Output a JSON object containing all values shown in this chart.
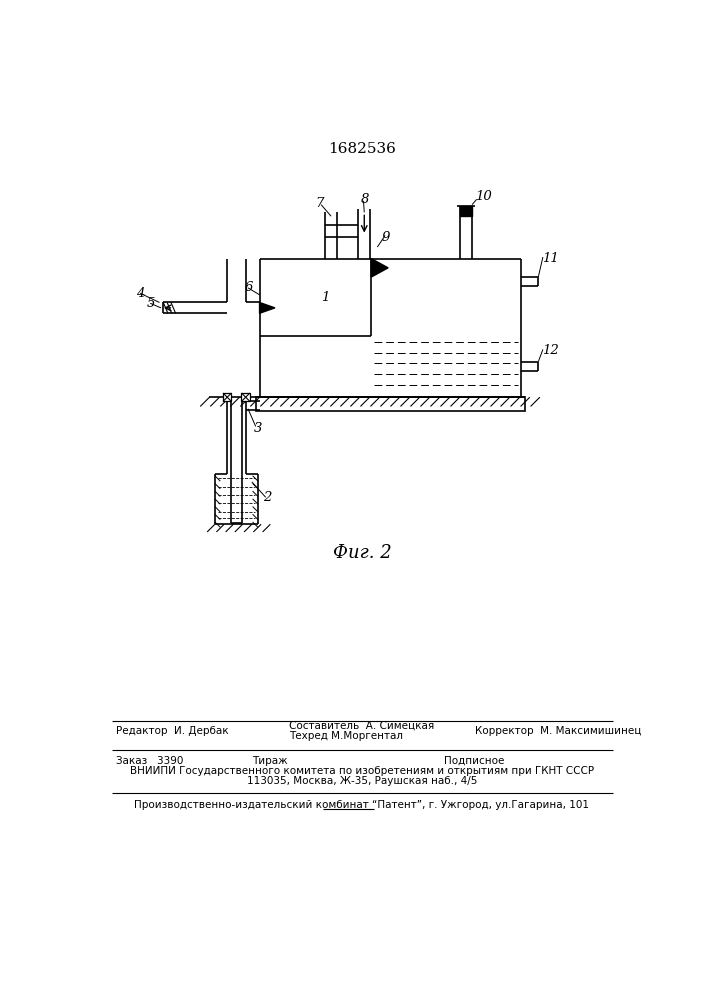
{
  "title": "1682536",
  "fig_caption": "Фиг. 2",
  "bg_color": "#ffffff",
  "line_color": "#000000",
  "lw": 1.2,
  "footer_left": "Редактор  И. Дербак",
  "footer_center1": "Составитель  А. Симецкая",
  "footer_center2": "Техред М.Моргентал",
  "footer_right": "Корректор  М. Максимишинец",
  "footer_order": "Заказ   3390",
  "footer_tirazh": "Тираж",
  "footer_podp": "Подписное",
  "footer_vniip1": "ВНИИПИ Государственного комитета по изобретениям и открытиям при ГКНТ СССР",
  "footer_vniip2": "113035, Москва, Ж-35, Раушская наб., 4/5",
  "footer_last": "Производственно-издательский комбинат “Патент”, г. Ужгород, ул.Гагарина, 101"
}
